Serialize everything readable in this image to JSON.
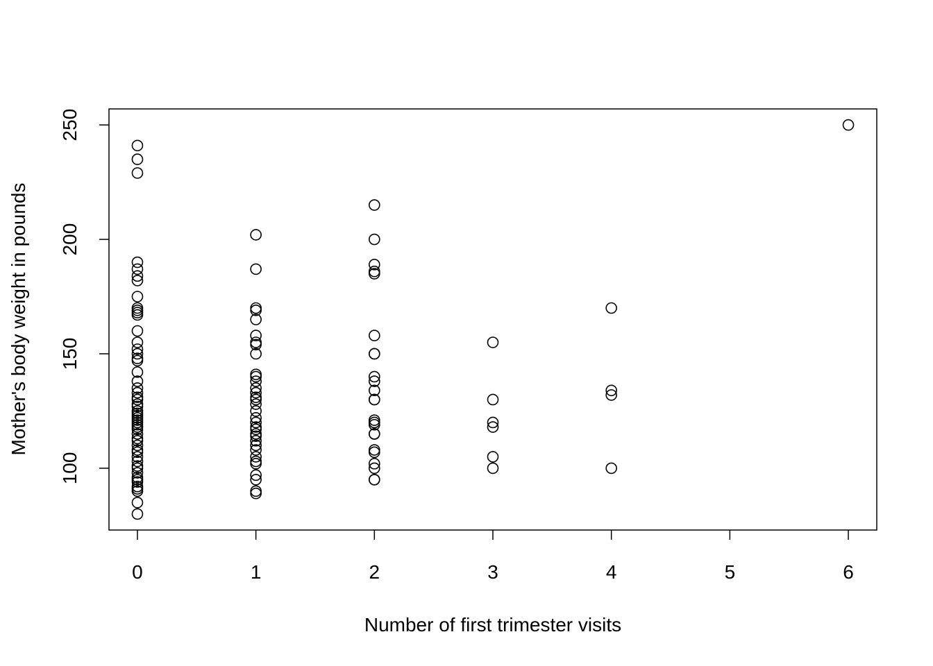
{
  "chart_data": {
    "type": "scatter",
    "x_label": "Number of first trimester visits",
    "y_label": "Mother's body weight in pounds",
    "x": [
      0,
      0,
      0,
      0,
      0,
      0,
      0,
      0,
      0,
      0,
      0,
      0,
      0,
      0,
      0,
      0,
      0,
      0,
      0,
      0,
      0,
      0,
      0,
      0,
      0,
      0,
      0,
      0,
      0,
      0,
      0,
      0,
      0,
      0,
      0,
      0,
      0,
      0,
      0,
      0,
      0,
      0,
      0,
      0,
      0,
      0,
      0,
      0,
      0,
      0,
      0,
      0,
      0,
      0,
      1,
      1,
      1,
      1,
      1,
      1,
      1,
      1,
      1,
      1,
      1,
      1,
      1,
      1,
      1,
      1,
      1,
      1,
      1,
      1,
      1,
      1,
      1,
      1,
      1,
      1,
      1,
      1,
      1,
      1,
      1,
      1,
      1,
      1,
      2,
      2,
      2,
      2,
      2,
      2,
      2,
      2,
      2,
      2,
      2,
      2,
      2,
      2,
      2,
      2,
      2,
      2,
      2,
      2,
      2,
      2,
      2,
      2,
      3,
      3,
      3,
      3,
      3,
      3,
      4,
      4,
      4,
      4,
      6
    ],
    "values": [
      241,
      235,
      229,
      190,
      187,
      184,
      182,
      175,
      170,
      169,
      168,
      167,
      160,
      155,
      152,
      150,
      148,
      147,
      142,
      138,
      135,
      133,
      131,
      130,
      128,
      127,
      125,
      124,
      123,
      122,
      121,
      120,
      119,
      118,
      117,
      115,
      113,
      112,
      110,
      108,
      107,
      105,
      103,
      101,
      100,
      98,
      96,
      95,
      94,
      92,
      91,
      90,
      85,
      80,
      202,
      187,
      170,
      169,
      165,
      158,
      155,
      154,
      150,
      141,
      140,
      138,
      135,
      133,
      131,
      130,
      128,
      125,
      122,
      120,
      118,
      117,
      115,
      114,
      112,
      110,
      108,
      105,
      103,
      102,
      97,
      95,
      90,
      89,
      215,
      200,
      189,
      186,
      185,
      158,
      150,
      150,
      140,
      138,
      134,
      130,
      130,
      121,
      120,
      119,
      115,
      115,
      108,
      107,
      102,
      100,
      95,
      95,
      155,
      130,
      120,
      118,
      105,
      100,
      170,
      134,
      132,
      100,
      250
    ],
    "color": "#000000",
    "xlim": [
      -0.24,
      6.24
    ],
    "xticks": [
      0,
      1,
      2,
      3,
      4,
      5,
      6
    ],
    "ylim": [
      73,
      257
    ],
    "yticks": [
      100,
      150,
      200,
      250
    ],
    "grid": false
  }
}
